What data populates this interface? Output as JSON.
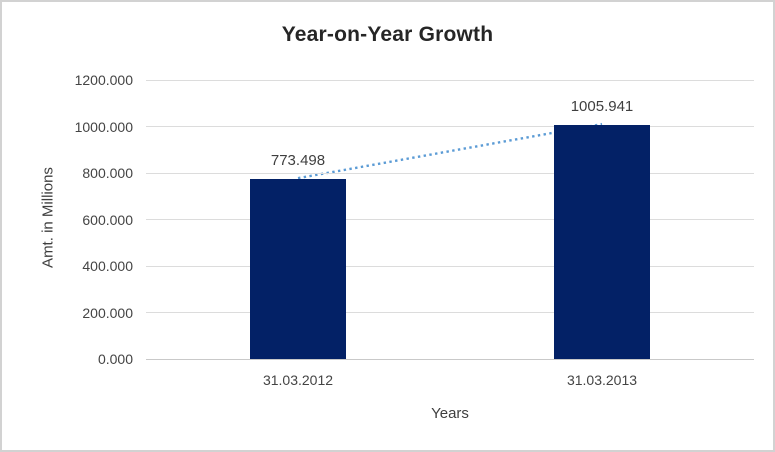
{
  "chart_data": {
    "type": "bar",
    "title": "Year-on-Year Growth",
    "categories": [
      "31.03.2012",
      "31.03.2013"
    ],
    "values": [
      773.498,
      1005.941
    ],
    "data_labels": [
      "773.498",
      "1005.941"
    ],
    "xlabel": "Years",
    "ylabel": "Amt. in Millions",
    "ylim": [
      0,
      1200
    ],
    "ytick_step": 200,
    "yticks": [
      "1200.000",
      "1000.000",
      "800.000",
      "600.000",
      "400.000",
      "200.000",
      "0.000"
    ],
    "grid": true,
    "legend": "none",
    "trendline": {
      "style": "dotted",
      "connects": [
        "31.03.2012",
        "31.03.2013"
      ]
    }
  },
  "colors": {
    "bar_fill": "#032166",
    "trendline": "#5b9bd5",
    "gridline": "#dcdcdc",
    "axis_line": "#c9c9c9",
    "title_text": "#262626",
    "label_text": "#3f3f3f",
    "tick_text": "#444444",
    "frame_border": "#d2d2d2"
  }
}
